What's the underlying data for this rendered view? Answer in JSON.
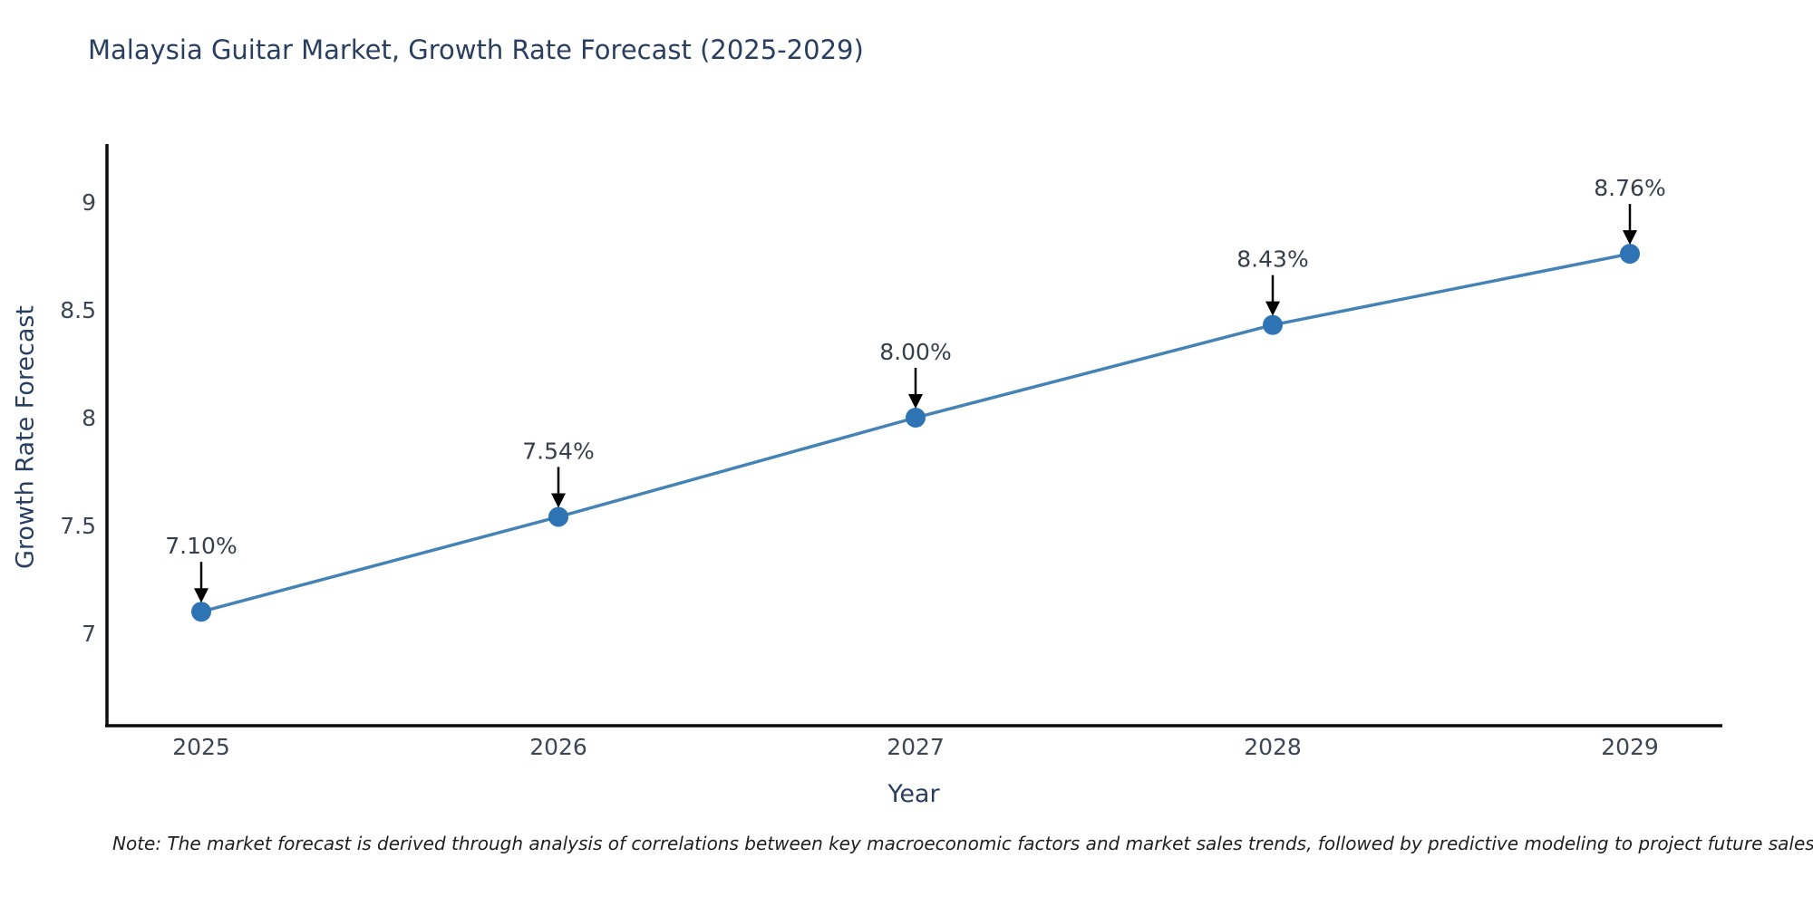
{
  "title": "Malaysia Guitar Market, Growth Rate Forecast (2025-2029)",
  "note": "Note: The market forecast is derived through analysis of correlations between key macroeconomic factors and market sales trends, followed by predictive modeling to project future sales",
  "chart_data": {
    "type": "line",
    "title": "Malaysia Guitar Market, Growth Rate Forecast (2025-2029)",
    "xlabel": "Year",
    "ylabel": "Growth Rate Forecast",
    "x": [
      2025,
      2026,
      2027,
      2028,
      2029
    ],
    "y": [
      7.1,
      7.54,
      8.0,
      8.43,
      8.76
    ],
    "point_labels": [
      "7.10%",
      "7.54%",
      "8.00%",
      "8.43%",
      "8.76%"
    ],
    "x_tick_labels": [
      "2025",
      "2026",
      "2027",
      "2028",
      "2029"
    ],
    "y_tick_values": [
      7,
      7.5,
      8,
      8.5,
      9
    ],
    "y_tick_labels": [
      "7",
      "7.5",
      "8",
      "8.5",
      "9"
    ],
    "ylim": [
      6.57,
      9.27
    ],
    "grid": false,
    "legend": "none",
    "colors": {
      "line": "#4583b5",
      "marker": "#2e74b5",
      "axis_line": "#0d0d0d",
      "tick_text": "#3d4754",
      "annotation_text": "#37404a",
      "annotation_arrow": "#000000",
      "title_text": "#2a3f5f"
    }
  }
}
